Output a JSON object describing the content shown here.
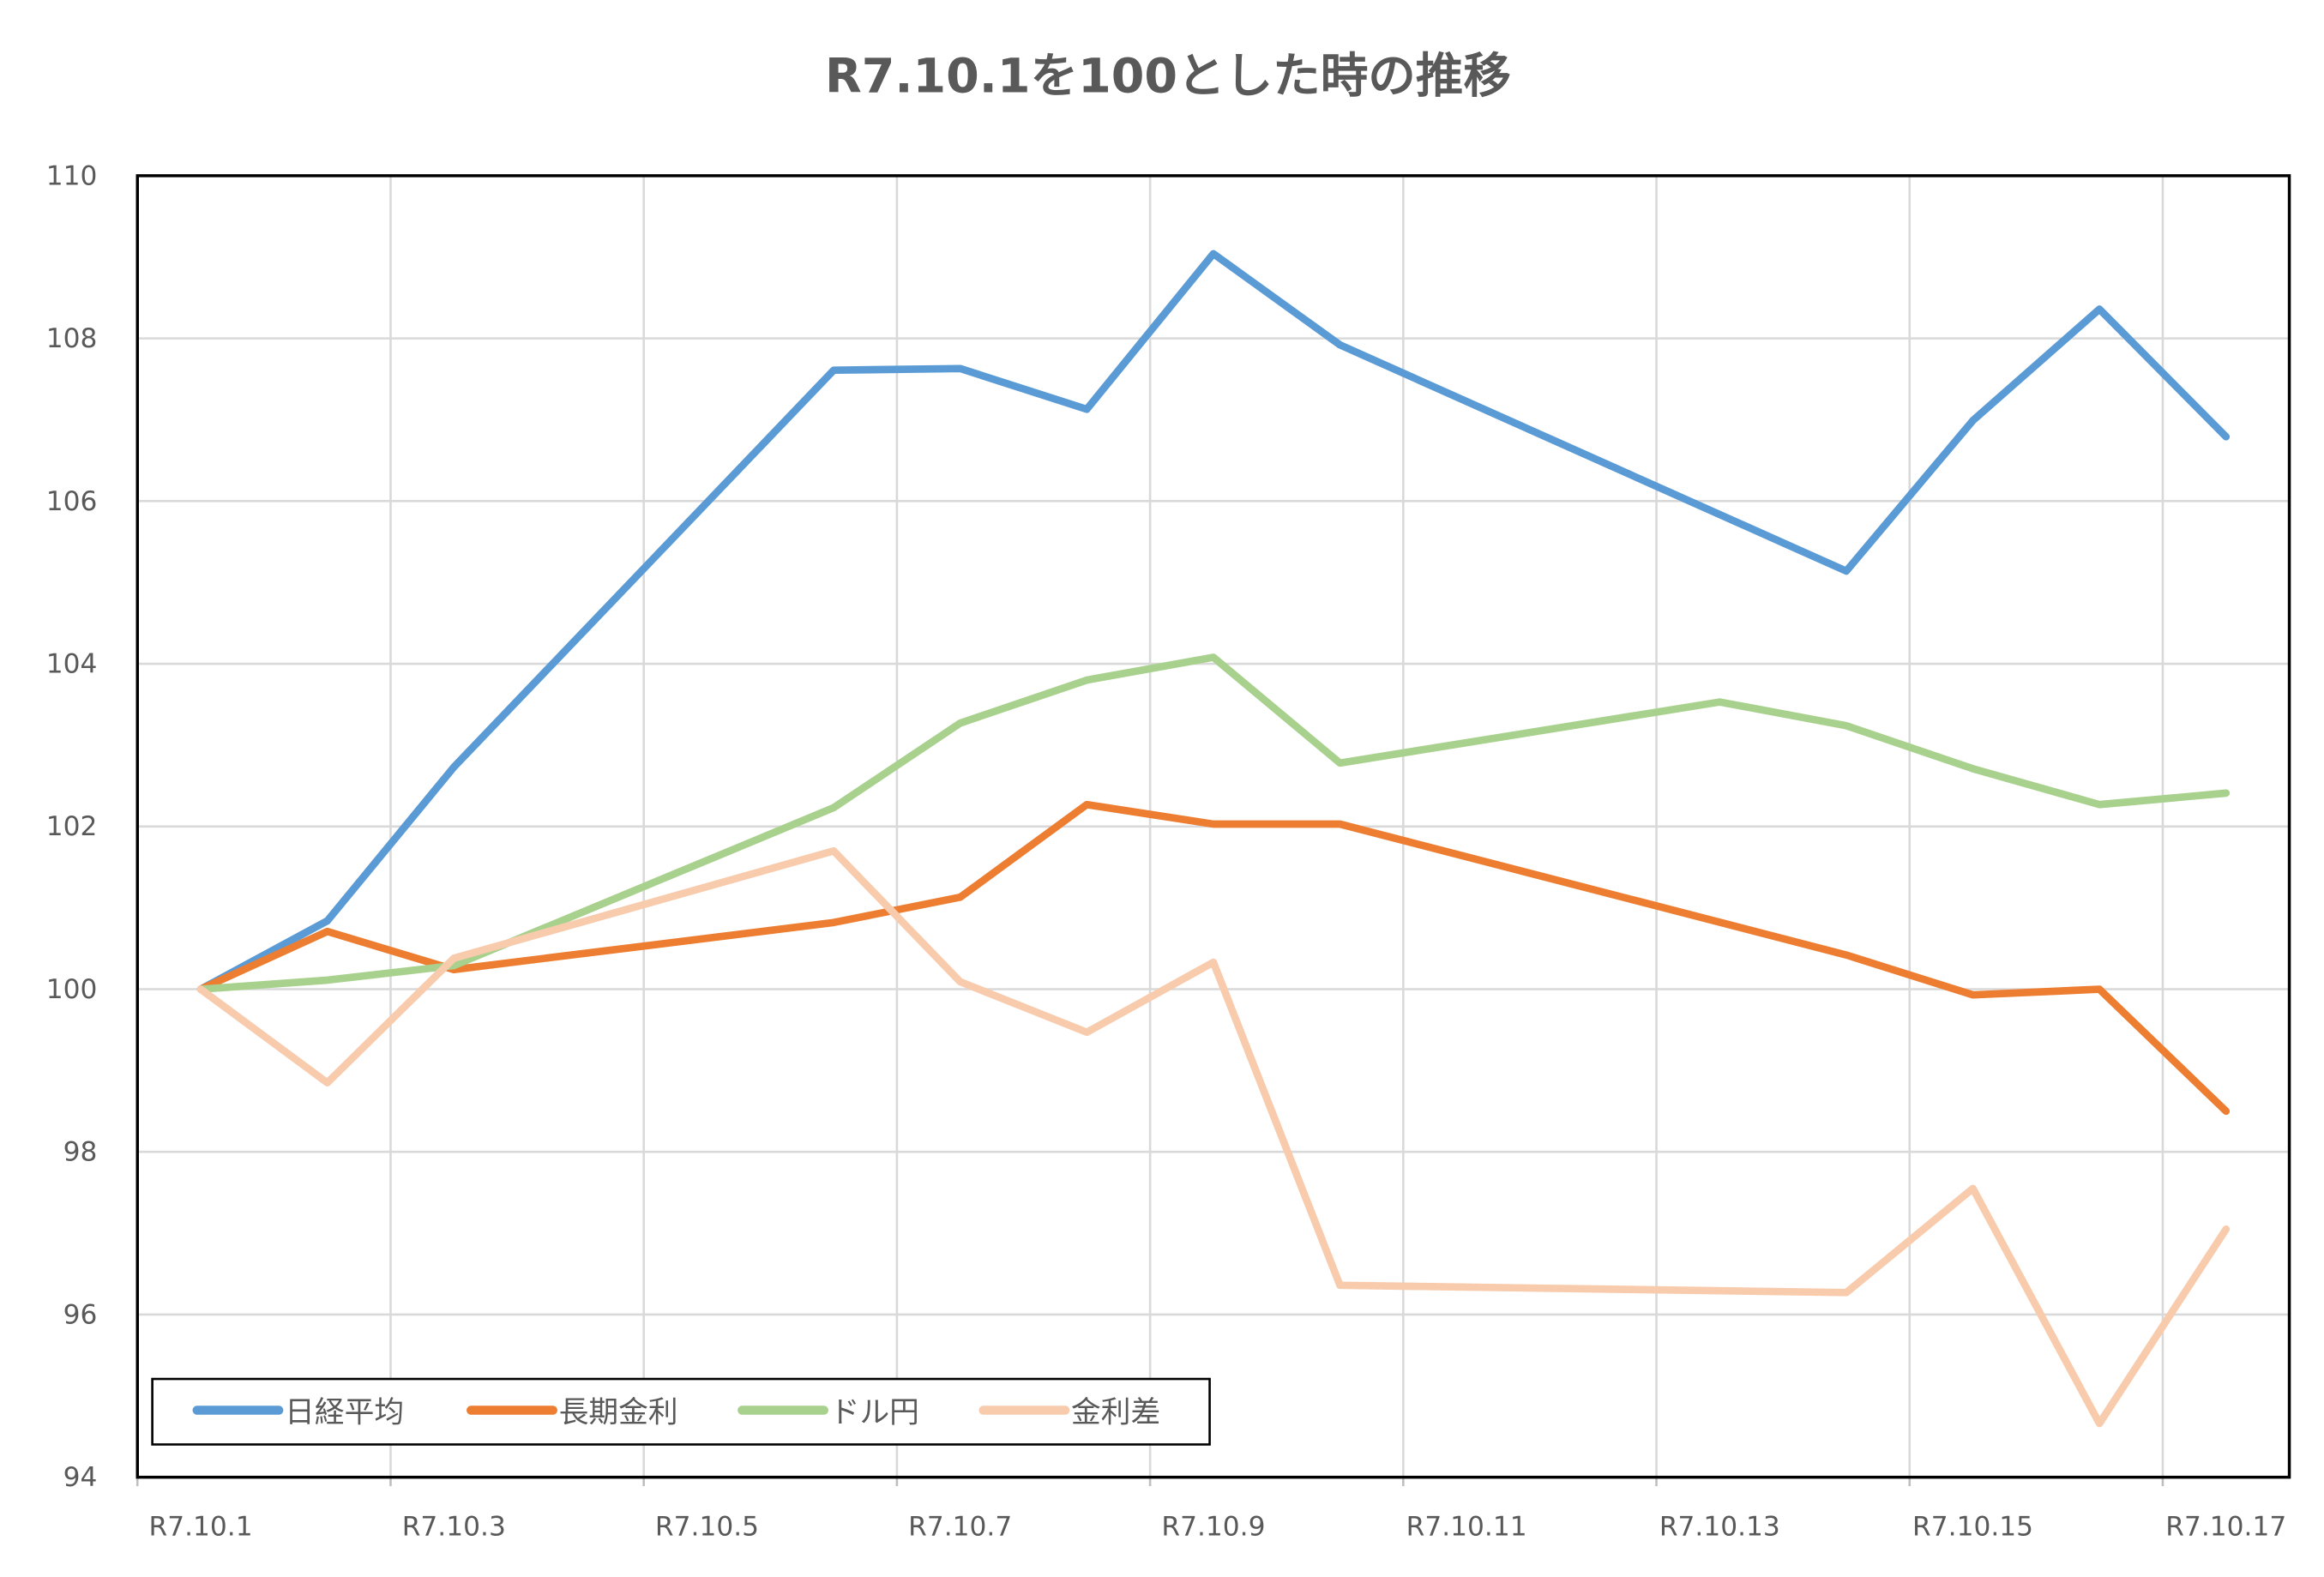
{
  "chart_data": {
    "type": "line",
    "title": "R7.10.1を100とした時の推移",
    "xlabel": "",
    "ylabel": "",
    "ylim": [
      94,
      110
    ],
    "yticks": [
      "94",
      "96",
      "98",
      "100",
      "102",
      "104",
      "106",
      "108",
      "110"
    ],
    "x_categories": [
      "R7.10.1",
      "R7.10.2",
      "R7.10.3",
      "R7.10.4",
      "R7.10.5",
      "R7.10.6",
      "R7.10.7",
      "R7.10.8",
      "R7.10.9",
      "R7.10.10",
      "R7.10.11",
      "R7.10.12",
      "R7.10.13",
      "R7.10.14",
      "R7.10.15",
      "R7.10.16",
      "R7.10.17"
    ],
    "xtick_labels": [
      "R7.10.1",
      "R7.10.3",
      "R7.10.5",
      "R7.10.7",
      "R7.10.9",
      "R7.10.11",
      "R7.10.13",
      "R7.10.15",
      "R7.10.17"
    ],
    "grid": true,
    "legend_position": "bottom-left",
    "x": [
      "R7.10.1",
      "R7.10.2",
      "R7.10.3",
      "R7.10.6",
      "R7.10.7",
      "R7.10.8",
      "R7.10.9",
      "R7.10.10",
      "R7.10.13",
      "R7.10.14",
      "R7.10.15",
      "R7.10.16",
      "R7.10.17"
    ],
    "series": [
      {
        "name": "日経平均",
        "color": "#5B9BD5",
        "values": [
          100,
          100.84,
          102.73,
          107.61,
          107.63,
          107.13,
          109.04,
          107.92,
          null,
          105.14,
          106.99,
          108.36,
          106.79
        ]
      },
      {
        "name": "長期金利",
        "color": "#ED7D31",
        "values": [
          100,
          100.71,
          100.24,
          100.82,
          101.13,
          102.27,
          102.03,
          102.03,
          null,
          100.42,
          99.93,
          100.0,
          98.5
        ]
      },
      {
        "name": "ドル円",
        "color": "#A9D18E",
        "values": [
          100,
          100.11,
          100.29,
          102.23,
          103.27,
          103.8,
          104.08,
          102.78,
          103.53,
          103.24,
          102.71,
          102.27,
          102.41
        ]
      },
      {
        "name": "金利差",
        "color": "#F8CBAD",
        "values": [
          100,
          98.85,
          100.38,
          101.7,
          100.09,
          99.47,
          100.33,
          96.36,
          null,
          96.27,
          97.55,
          94.66,
          97.05
        ]
      }
    ]
  }
}
